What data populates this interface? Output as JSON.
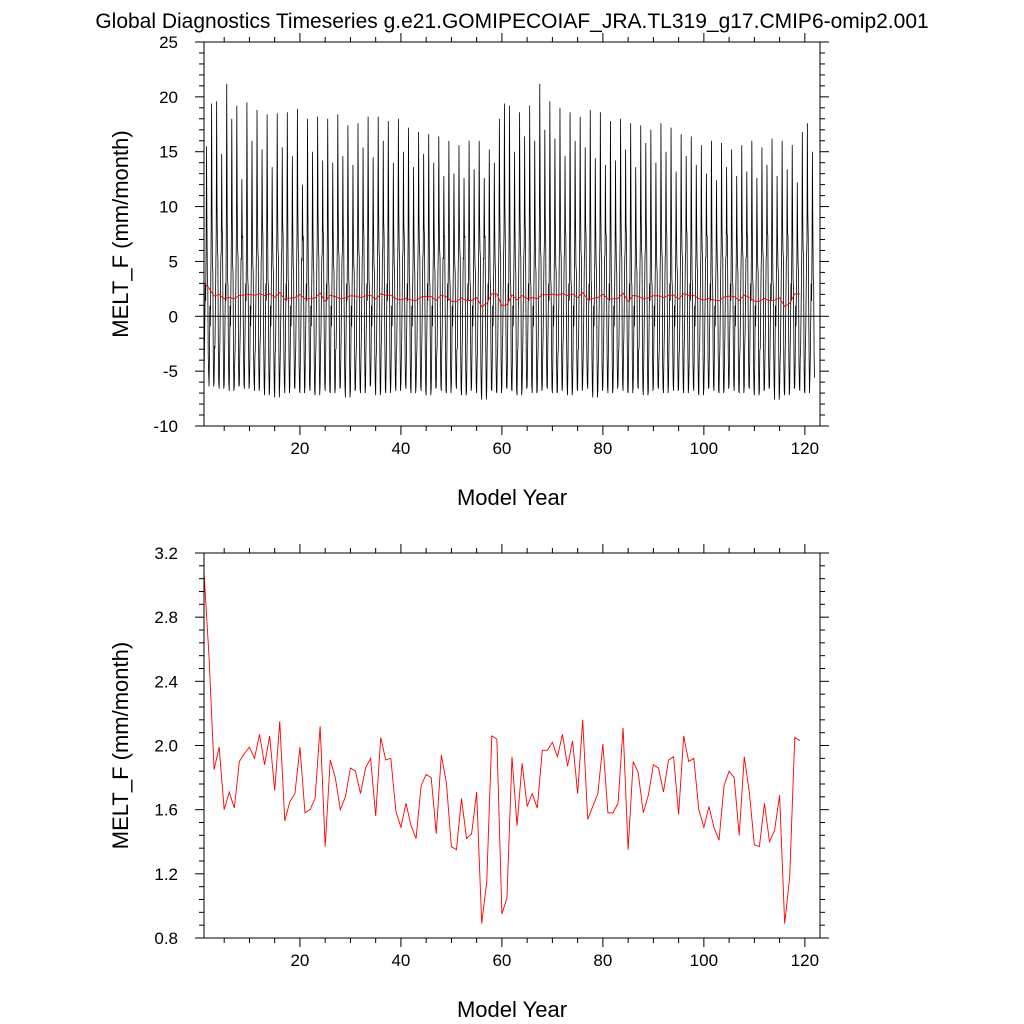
{
  "page": {
    "title": "Global Diagnostics Timeseries g.e21.GOMIPECOIAF_JRA.TL319_g17.CMIP6-omip2.001"
  },
  "colors": {
    "monthly_series": "#000000",
    "annual_series": "#ff0000",
    "zero_line": "#000000",
    "background": "#ffffff"
  },
  "chart_data": [
    {
      "type": "line",
      "xlabel": "Model Year",
      "ylabel": "MELT_F (mm/month)",
      "xlim": [
        1,
        123
      ],
      "ylim": [
        -10,
        25
      ],
      "xticks": [
        20,
        40,
        60,
        80,
        100,
        120
      ],
      "yticks": [
        -10,
        -5,
        0,
        5,
        10,
        15,
        20,
        25
      ],
      "ytick_labels": [
        "-10",
        "-5",
        "0",
        "5",
        "10",
        "15",
        "20",
        "25"
      ],
      "reference_line_y": 0,
      "grid": false,
      "legend": "none",
      "series": [
        {
          "role": "monthly",
          "color": "#000000",
          "x_start": 1,
          "x_step": 0.08333,
          "description_values": "monthly global MELT_F; annual cycle, one peak per model year",
          "annual_peaks": [
            15.5,
            19.4,
            19.6,
            14.8,
            21.2,
            18.0,
            19.2,
            12.5,
            19.5,
            16.0,
            18.8,
            15.2,
            18.4,
            13.6,
            18.5,
            15.4,
            18.6,
            14.6,
            18.9,
            12.0,
            18.0,
            15.0,
            18.2,
            14.2,
            18.0,
            14.0,
            18.4,
            14.6,
            17.4,
            13.8,
            17.6,
            15.4,
            18.2,
            14.5,
            18.2,
            16.0,
            17.8,
            14.0,
            18.0,
            15.0,
            17.2,
            13.6,
            16.8,
            14.8,
            16.6,
            14.0,
            16.4,
            12.8,
            16.0,
            13.0,
            15.6,
            12.6,
            16.0,
            13.4,
            16.0,
            12.6,
            15.2,
            14.0,
            18.0,
            19.4,
            19.2,
            15.0,
            18.6,
            16.4,
            19.2,
            16.0,
            21.2,
            17.0,
            19.6,
            16.2,
            19.0,
            14.6,
            18.6,
            16.0,
            18.2,
            15.4,
            18.8,
            14.4,
            18.6,
            13.8,
            17.8,
            14.2,
            18.0,
            15.2,
            17.6,
            13.6,
            17.4,
            15.8,
            17.0,
            14.0,
            17.6,
            15.0,
            17.2,
            13.2,
            16.6,
            14.6,
            16.4,
            13.8,
            15.6,
            13.0,
            16.0,
            12.4,
            15.8,
            13.6,
            15.2,
            12.8,
            15.6,
            13.2,
            16.0,
            12.6,
            15.4,
            13.8,
            16.2,
            12.8,
            16.0,
            13.4,
            15.6,
            12.2,
            16.8,
            17.6,
            15.0,
            15.2
          ],
          "annual_troughs": [
            -5.2,
            -6.4,
            -6.0,
            -6.6,
            -6.2,
            -6.8,
            -6.4,
            -6.2,
            -6.6,
            -6.0,
            -6.8,
            -6.4,
            -7.2,
            -6.6,
            -7.4,
            -6.2,
            -7.0,
            -6.4,
            -6.6,
            -7.0,
            -6.4,
            -6.8,
            -7.2,
            -6.2,
            -6.8,
            -7.0,
            -6.6,
            -6.4,
            -7.4,
            -6.8,
            -6.6,
            -7.0,
            -6.4,
            -6.2,
            -7.2,
            -6.6,
            -7.0,
            -6.4,
            -6.8,
            -6.2,
            -6.6,
            -7.0,
            -6.4,
            -6.8,
            -7.2,
            -6.6,
            -6.4,
            -6.8,
            -7.0,
            -6.2,
            -6.6,
            -7.2,
            -6.8,
            -6.4,
            -7.0,
            -7.6,
            -6.6,
            -6.8,
            -7.0,
            -6.4,
            -6.6,
            -6.8,
            -7.2,
            -6.6,
            -6.4,
            -7.0,
            -6.8,
            -6.4,
            -6.6,
            -7.0,
            -6.8,
            -6.4,
            -7.2,
            -6.6,
            -6.8,
            -6.2,
            -6.6,
            -7.4,
            -6.8,
            -6.4,
            -7.0,
            -6.6,
            -6.2,
            -6.8,
            -7.0,
            -6.4,
            -6.6,
            -7.2,
            -6.8,
            -6.4,
            -6.6,
            -7.0,
            -6.2,
            -6.8,
            -6.6,
            -7.0,
            -6.4,
            -6.8,
            -7.2,
            -6.6,
            -6.4,
            -6.8,
            -7.0,
            -6.6,
            -6.2,
            -6.8,
            -7.0,
            -6.4,
            -6.6,
            -7.2,
            -6.8,
            -6.6,
            -6.4,
            -7.6,
            -6.8,
            -7.2,
            -6.6,
            -6.4,
            -6.8,
            -7.0,
            -5.6
          ]
        },
        {
          "role": "annual_mean",
          "color": "#ff0000",
          "x_start": 1,
          "x_step": 1,
          "values": [
            3.08,
            2.55,
            1.85,
            1.99,
            1.6,
            1.71,
            1.61,
            1.9,
            1.95,
            1.99,
            1.92,
            2.07,
            1.88,
            2.06,
            1.72,
            2.15,
            1.53,
            1.65,
            1.7,
            1.99,
            1.58,
            1.6,
            1.67,
            2.12,
            1.37,
            1.91,
            1.8,
            1.6,
            1.68,
            1.86,
            1.84,
            1.7,
            1.86,
            1.92,
            1.56,
            2.05,
            1.91,
            1.92,
            1.59,
            1.49,
            1.64,
            1.5,
            1.42,
            1.75,
            1.82,
            1.8,
            1.45,
            1.94,
            1.77,
            1.37,
            1.35,
            1.67,
            1.42,
            1.45,
            1.71,
            0.89,
            1.15,
            2.06,
            2.04,
            0.95,
            1.05,
            1.93,
            1.5,
            1.89,
            1.62,
            1.7,
            1.61,
            1.97,
            1.97,
            2.02,
            1.93,
            2.07,
            1.87,
            2.03,
            1.7,
            2.16,
            1.54,
            1.62,
            1.7,
            2.01,
            1.58,
            1.58,
            1.64,
            2.11,
            1.35,
            1.9,
            1.83,
            1.58,
            1.69,
            1.88,
            1.86,
            1.71,
            1.91,
            1.93,
            1.57,
            2.06,
            1.9,
            1.92,
            1.6,
            1.49,
            1.62,
            1.49,
            1.41,
            1.75,
            1.84,
            1.8,
            1.44,
            1.93,
            1.71,
            1.38,
            1.37,
            1.64,
            1.4,
            1.47,
            1.69,
            0.89,
            1.18,
            2.05,
            2.03
          ]
        }
      ]
    },
    {
      "type": "line",
      "xlabel": "Model Year",
      "ylabel": "MELT_F (mm/month)",
      "xlim": [
        1,
        123
      ],
      "ylim": [
        0.8,
        3.2
      ],
      "xticks": [
        20,
        40,
        60,
        80,
        100,
        120
      ],
      "yticks": [
        0.8,
        1.2,
        1.6,
        2.0,
        2.4,
        2.8,
        3.2
      ],
      "ytick_labels": [
        "0.8",
        "1.2",
        "1.6",
        "2.0",
        "2.4",
        "2.8",
        "3.2"
      ],
      "grid": false,
      "legend": "none",
      "series": [
        {
          "role": "annual_mean",
          "color": "#ff0000",
          "x_start": 1,
          "x_step": 1,
          "values": [
            3.08,
            2.55,
            1.85,
            1.99,
            1.6,
            1.71,
            1.61,
            1.9,
            1.95,
            1.99,
            1.92,
            2.07,
            1.88,
            2.06,
            1.72,
            2.15,
            1.53,
            1.65,
            1.7,
            1.99,
            1.58,
            1.6,
            1.67,
            2.12,
            1.37,
            1.91,
            1.8,
            1.6,
            1.68,
            1.86,
            1.84,
            1.7,
            1.86,
            1.92,
            1.56,
            2.05,
            1.91,
            1.92,
            1.59,
            1.49,
            1.64,
            1.5,
            1.42,
            1.75,
            1.82,
            1.8,
            1.45,
            1.94,
            1.77,
            1.37,
            1.35,
            1.67,
            1.42,
            1.45,
            1.71,
            0.89,
            1.15,
            2.06,
            2.04,
            0.95,
            1.05,
            1.93,
            1.5,
            1.89,
            1.62,
            1.7,
            1.61,
            1.97,
            1.97,
            2.02,
            1.93,
            2.07,
            1.87,
            2.03,
            1.7,
            2.16,
            1.54,
            1.62,
            1.7,
            2.01,
            1.58,
            1.58,
            1.64,
            2.11,
            1.35,
            1.9,
            1.83,
            1.58,
            1.69,
            1.88,
            1.86,
            1.71,
            1.91,
            1.93,
            1.57,
            2.06,
            1.9,
            1.92,
            1.6,
            1.49,
            1.62,
            1.49,
            1.41,
            1.75,
            1.84,
            1.8,
            1.44,
            1.93,
            1.71,
            1.38,
            1.37,
            1.64,
            1.4,
            1.47,
            1.69,
            0.89,
            1.18,
            2.05,
            2.03
          ]
        }
      ]
    }
  ]
}
